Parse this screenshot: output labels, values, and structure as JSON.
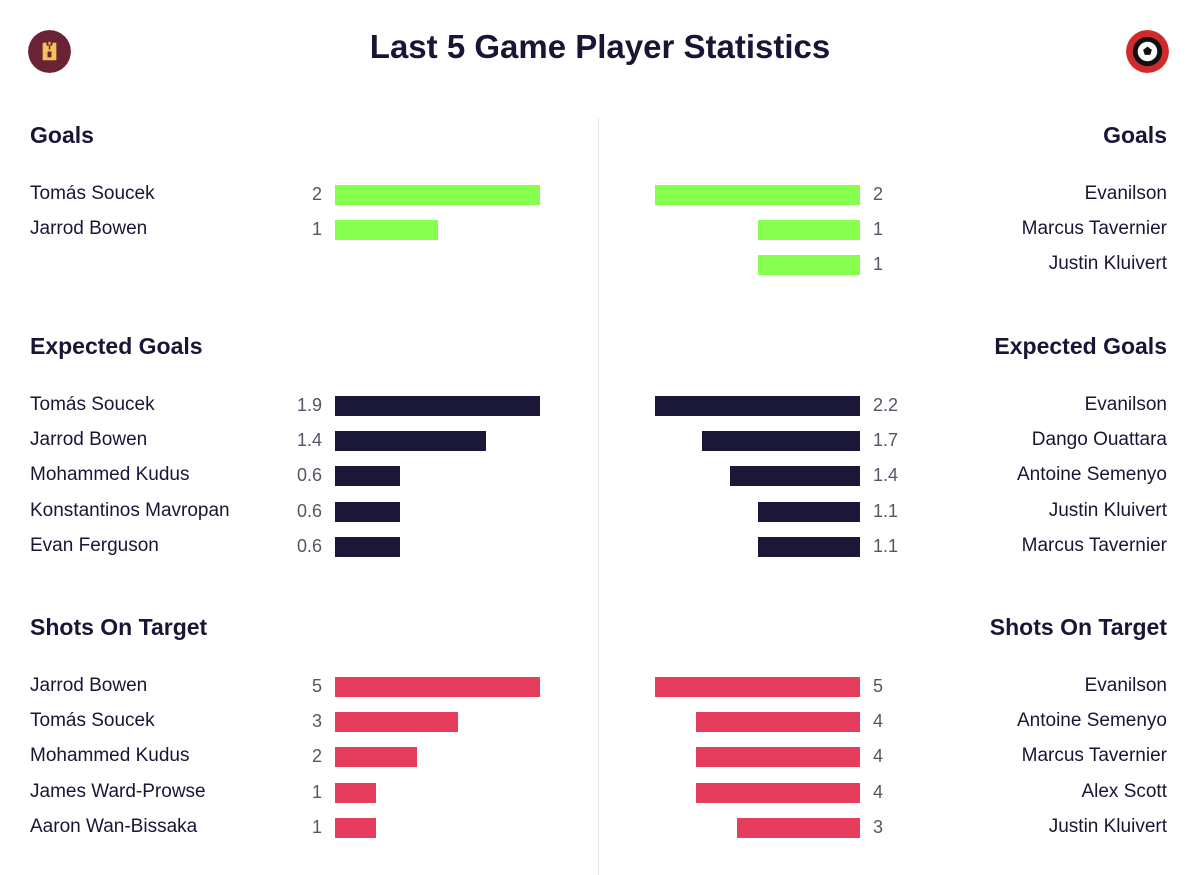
{
  "title": "Last 5 Game Player Statistics",
  "icons": {
    "left": "west-ham-club-badge",
    "right": "bournemouth-club-badge"
  },
  "colors": {
    "goals": "#86ff4e",
    "xg": "#1b1739",
    "shots": "#e63d5e",
    "text": "#1a1535"
  },
  "chart_data": [
    {
      "type": "bar",
      "title": "Goals",
      "side": "left",
      "categories": [
        "Tomás Soucek",
        "Jarrod Bowen"
      ],
      "values": [
        2,
        1
      ],
      "labels": [
        "2",
        "1"
      ]
    },
    {
      "type": "bar",
      "title": "Goals",
      "side": "right",
      "categories": [
        "Evanilson",
        "Marcus Tavernier",
        "Justin Kluivert"
      ],
      "values": [
        2,
        1,
        1
      ],
      "labels": [
        "2",
        "1",
        "1"
      ]
    },
    {
      "type": "bar",
      "title": "Expected Goals",
      "side": "left",
      "categories": [
        "Tomás Soucek",
        "Jarrod Bowen",
        "Mohammed Kudus",
        "Konstantinos Mavropan",
        "Evan Ferguson"
      ],
      "values": [
        1.9,
        1.4,
        0.6,
        0.6,
        0.6
      ],
      "labels": [
        "1.9",
        "1.4",
        "0.6",
        "0.6",
        "0.6"
      ]
    },
    {
      "type": "bar",
      "title": "Expected Goals",
      "side": "right",
      "categories": [
        "Evanilson",
        "Dango Ouattara",
        "Antoine Semenyo",
        "Justin Kluivert",
        "Marcus Tavernier"
      ],
      "values": [
        2.2,
        1.7,
        1.4,
        1.1,
        1.1
      ],
      "labels": [
        "2.2",
        "1.7",
        "1.4",
        "1.1",
        "1.1"
      ]
    },
    {
      "type": "bar",
      "title": "Shots On Target",
      "side": "left",
      "categories": [
        "Jarrod Bowen",
        "Tomás Soucek",
        "Mohammed Kudus",
        "James Ward-Prowse",
        "Aaron Wan-Bissaka"
      ],
      "values": [
        5,
        3,
        2,
        1,
        1
      ],
      "labels": [
        "5",
        "3",
        "2",
        "1",
        "1"
      ]
    },
    {
      "type": "bar",
      "title": "Shots On Target",
      "side": "right",
      "categories": [
        "Evanilson",
        "Antoine Semenyo",
        "Marcus Tavernier",
        "Alex Scott",
        "Justin Kluivert"
      ],
      "values": [
        5,
        4,
        4,
        4,
        3
      ],
      "labels": [
        "5",
        "4",
        "4",
        "4",
        "3"
      ]
    }
  ]
}
